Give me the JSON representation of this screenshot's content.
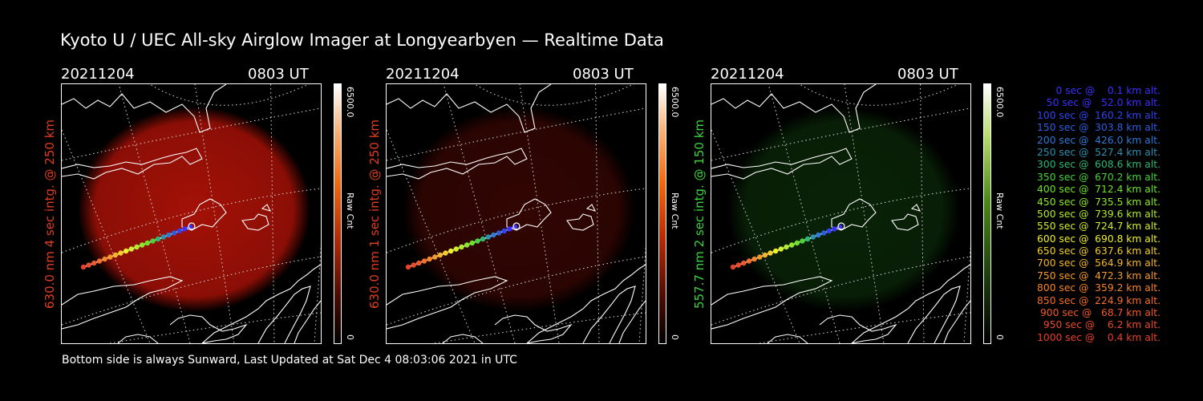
{
  "title": "Kyoto U / UEC All-sky Airglow Imager at Longyearbyen — Realtime Data",
  "footer": "Bottom side is always Sunward, Last Updated at Sat Dec  4 08:03:06 2021 in UTC",
  "panels": [
    {
      "date": "20211204",
      "time": "0803 UT",
      "ylabel": "630.0 nm 4 sec intg. @ 250 km",
      "label_color": "#e23b1e",
      "cb_max": "6500.0",
      "cb_unit": "Raw Cnt",
      "cb_min": "0",
      "glow_color": "#c01408",
      "glow_opacity": 0.85
    },
    {
      "date": "20211204",
      "time": "0803 UT",
      "ylabel": "630.0 nm 1 sec intg. @ 250 km",
      "label_color": "#e23b1e",
      "cb_max": "6500.0",
      "cb_unit": "Raw Cnt",
      "cb_min": "0",
      "glow_color": "#5a0a05",
      "glow_opacity": 0.55
    },
    {
      "date": "20211204",
      "time": "0803 UT",
      "ylabel": "557.7 nm 2 sec intg. @ 150 km",
      "label_color": "#3cd23c",
      "cb_max": "6500.0",
      "cb_unit": "Raw Cnt",
      "cb_min": "0",
      "glow_color": "#0f3a0c",
      "glow_opacity": 0.6
    }
  ],
  "legend": [
    {
      "text": "   0 sec @    0.1 km alt.",
      "color": "#3b30ff"
    },
    {
      "text": "  50 sec @   52.0 km alt.",
      "color": "#3b30ff"
    },
    {
      "text": " 100 sec @  160.2 km alt.",
      "color": "#2f45f0"
    },
    {
      "text": " 150 sec @  303.8 km alt.",
      "color": "#2e5ee0"
    },
    {
      "text": " 200 sec @  426.0 km alt.",
      "color": "#2f7ad6"
    },
    {
      "text": " 250 sec @  527.4 km alt.",
      "color": "#2f8fb0"
    },
    {
      "text": " 300 sec @  608.6 km alt.",
      "color": "#2fb874"
    },
    {
      "text": " 350 sec @  670.2 km alt.",
      "color": "#49d23c"
    },
    {
      "text": " 400 sec @  712.4 km alt.",
      "color": "#6ee22b"
    },
    {
      "text": " 450 sec @  735.5 km alt.",
      "color": "#8ee82a"
    },
    {
      "text": " 500 sec @  739.6 km alt.",
      "color": "#b2ec2a"
    },
    {
      "text": " 550 sec @  724.7 km alt.",
      "color": "#d3ee2a"
    },
    {
      "text": " 600 sec @  690.8 km alt.",
      "color": "#eff02a"
    },
    {
      "text": " 650 sec @  637.6 km alt.",
      "color": "#f4cf2a"
    },
    {
      "text": " 700 sec @  564.9 km alt.",
      "color": "#f5b62a"
    },
    {
      "text": " 750 sec @  472.3 km alt.",
      "color": "#f59a2a"
    },
    {
      "text": " 800 sec @  359.2 km alt.",
      "color": "#f5842a"
    },
    {
      "text": " 850 sec @  224.9 km alt.",
      "color": "#f56e2a"
    },
    {
      "text": " 900 sec @   68.7 km alt.",
      "color": "#f05a2a"
    },
    {
      "text": " 950 sec @    6.2 km alt.",
      "color": "#eb4b2a"
    },
    {
      "text": "1000 sec @    0.4 km alt.",
      "color": "#e8402a"
    }
  ]
}
